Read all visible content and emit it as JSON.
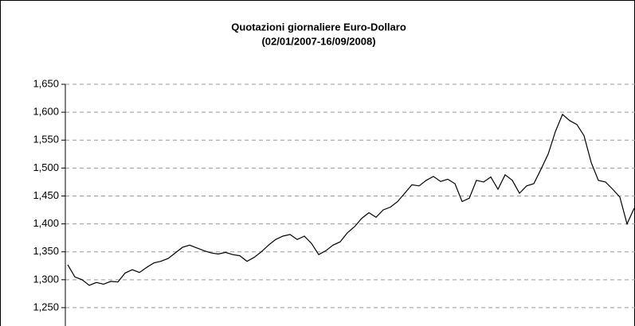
{
  "chart_data": {
    "type": "line",
    "title": "Quotazioni giornaliere Euro-Dollaro",
    "subtitle": "(02/01/2007-16/09/2008)",
    "color": "#000000",
    "grid": true,
    "ylim": [
      1.22,
      1.65
    ],
    "yticks": [
      {
        "value": 1.25,
        "label": "1,250"
      },
      {
        "value": 1.3,
        "label": "1,300"
      },
      {
        "value": 1.35,
        "label": "1,350"
      },
      {
        "value": 1.4,
        "label": "1,400"
      },
      {
        "value": 1.45,
        "label": "1,450"
      },
      {
        "value": 1.5,
        "label": "1,500"
      },
      {
        "value": 1.55,
        "label": "1,550"
      },
      {
        "value": 1.6,
        "label": "1,600"
      },
      {
        "value": 1.65,
        "label": "1,650"
      }
    ],
    "values": [
      1.327,
      1.305,
      1.3,
      1.29,
      1.295,
      1.292,
      1.297,
      1.296,
      1.312,
      1.318,
      1.313,
      1.322,
      1.33,
      1.333,
      1.338,
      1.348,
      1.358,
      1.362,
      1.357,
      1.352,
      1.348,
      1.346,
      1.349,
      1.345,
      1.343,
      1.333,
      1.34,
      1.35,
      1.362,
      1.372,
      1.378,
      1.381,
      1.372,
      1.378,
      1.365,
      1.345,
      1.352,
      1.362,
      1.368,
      1.384,
      1.395,
      1.41,
      1.42,
      1.412,
      1.425,
      1.43,
      1.44,
      1.455,
      1.47,
      1.468,
      1.478,
      1.485,
      1.476,
      1.48,
      1.472,
      1.44,
      1.446,
      1.478,
      1.475,
      1.484,
      1.462,
      1.488,
      1.478,
      1.455,
      1.468,
      1.472,
      1.498,
      1.525,
      1.565,
      1.596,
      1.585,
      1.578,
      1.558,
      1.51,
      1.478,
      1.475,
      1.462,
      1.448,
      1.4,
      1.428
    ]
  }
}
